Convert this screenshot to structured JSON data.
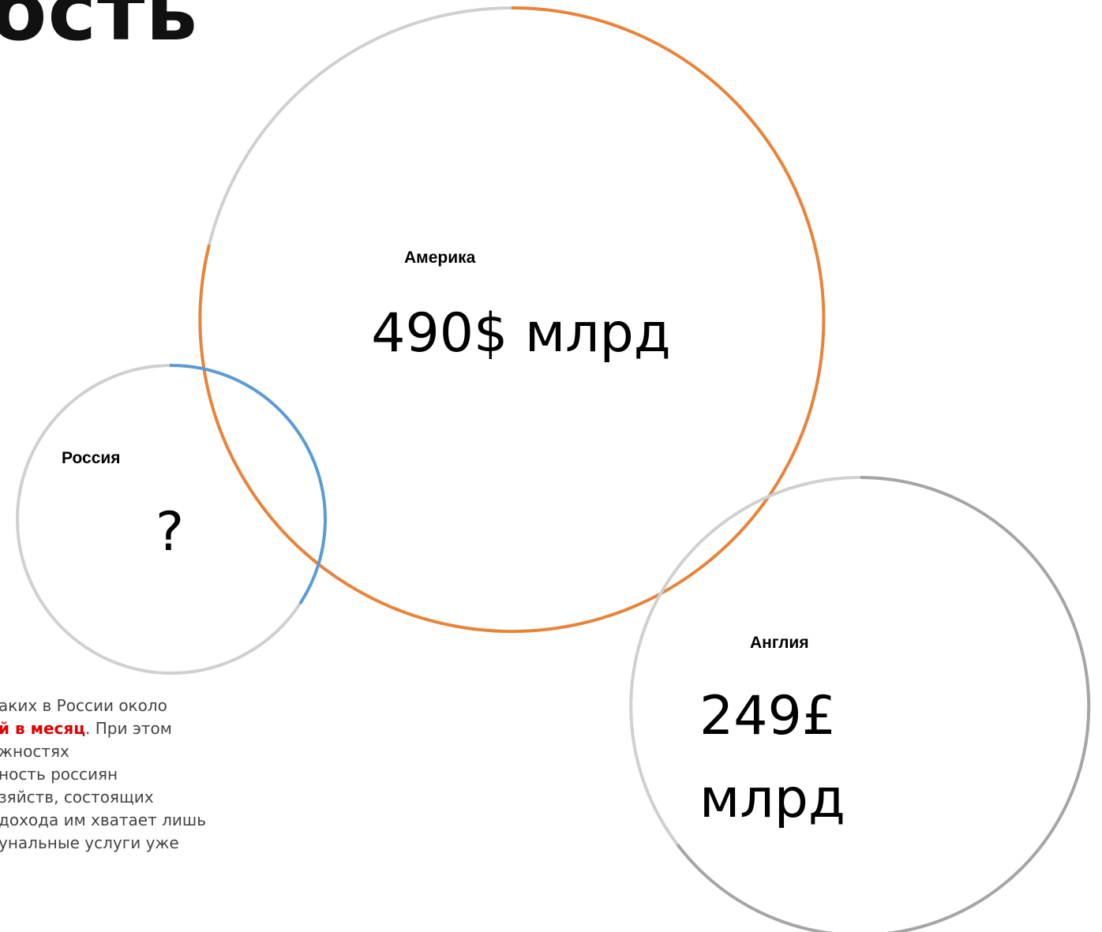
{
  "header": {
    "title": "ость"
  },
  "circles": [
    {
      "label": "Америка",
      "value": "490$ млрд"
    },
    {
      "label": "Россия",
      "value": "?"
    },
    {
      "label": "Англия",
      "value": "249£ млрд"
    }
  ],
  "paragraph": {
    "line_0": "аких в России около",
    "line_1_bold": "й в месяц",
    "line_1_rest": ". При этом",
    "lines": [
      "жностях",
      "ность россиян",
      "зяйств, состоящих",
      "дохода им хватает лишь",
      "унальные услуги уже"
    ]
  }
}
